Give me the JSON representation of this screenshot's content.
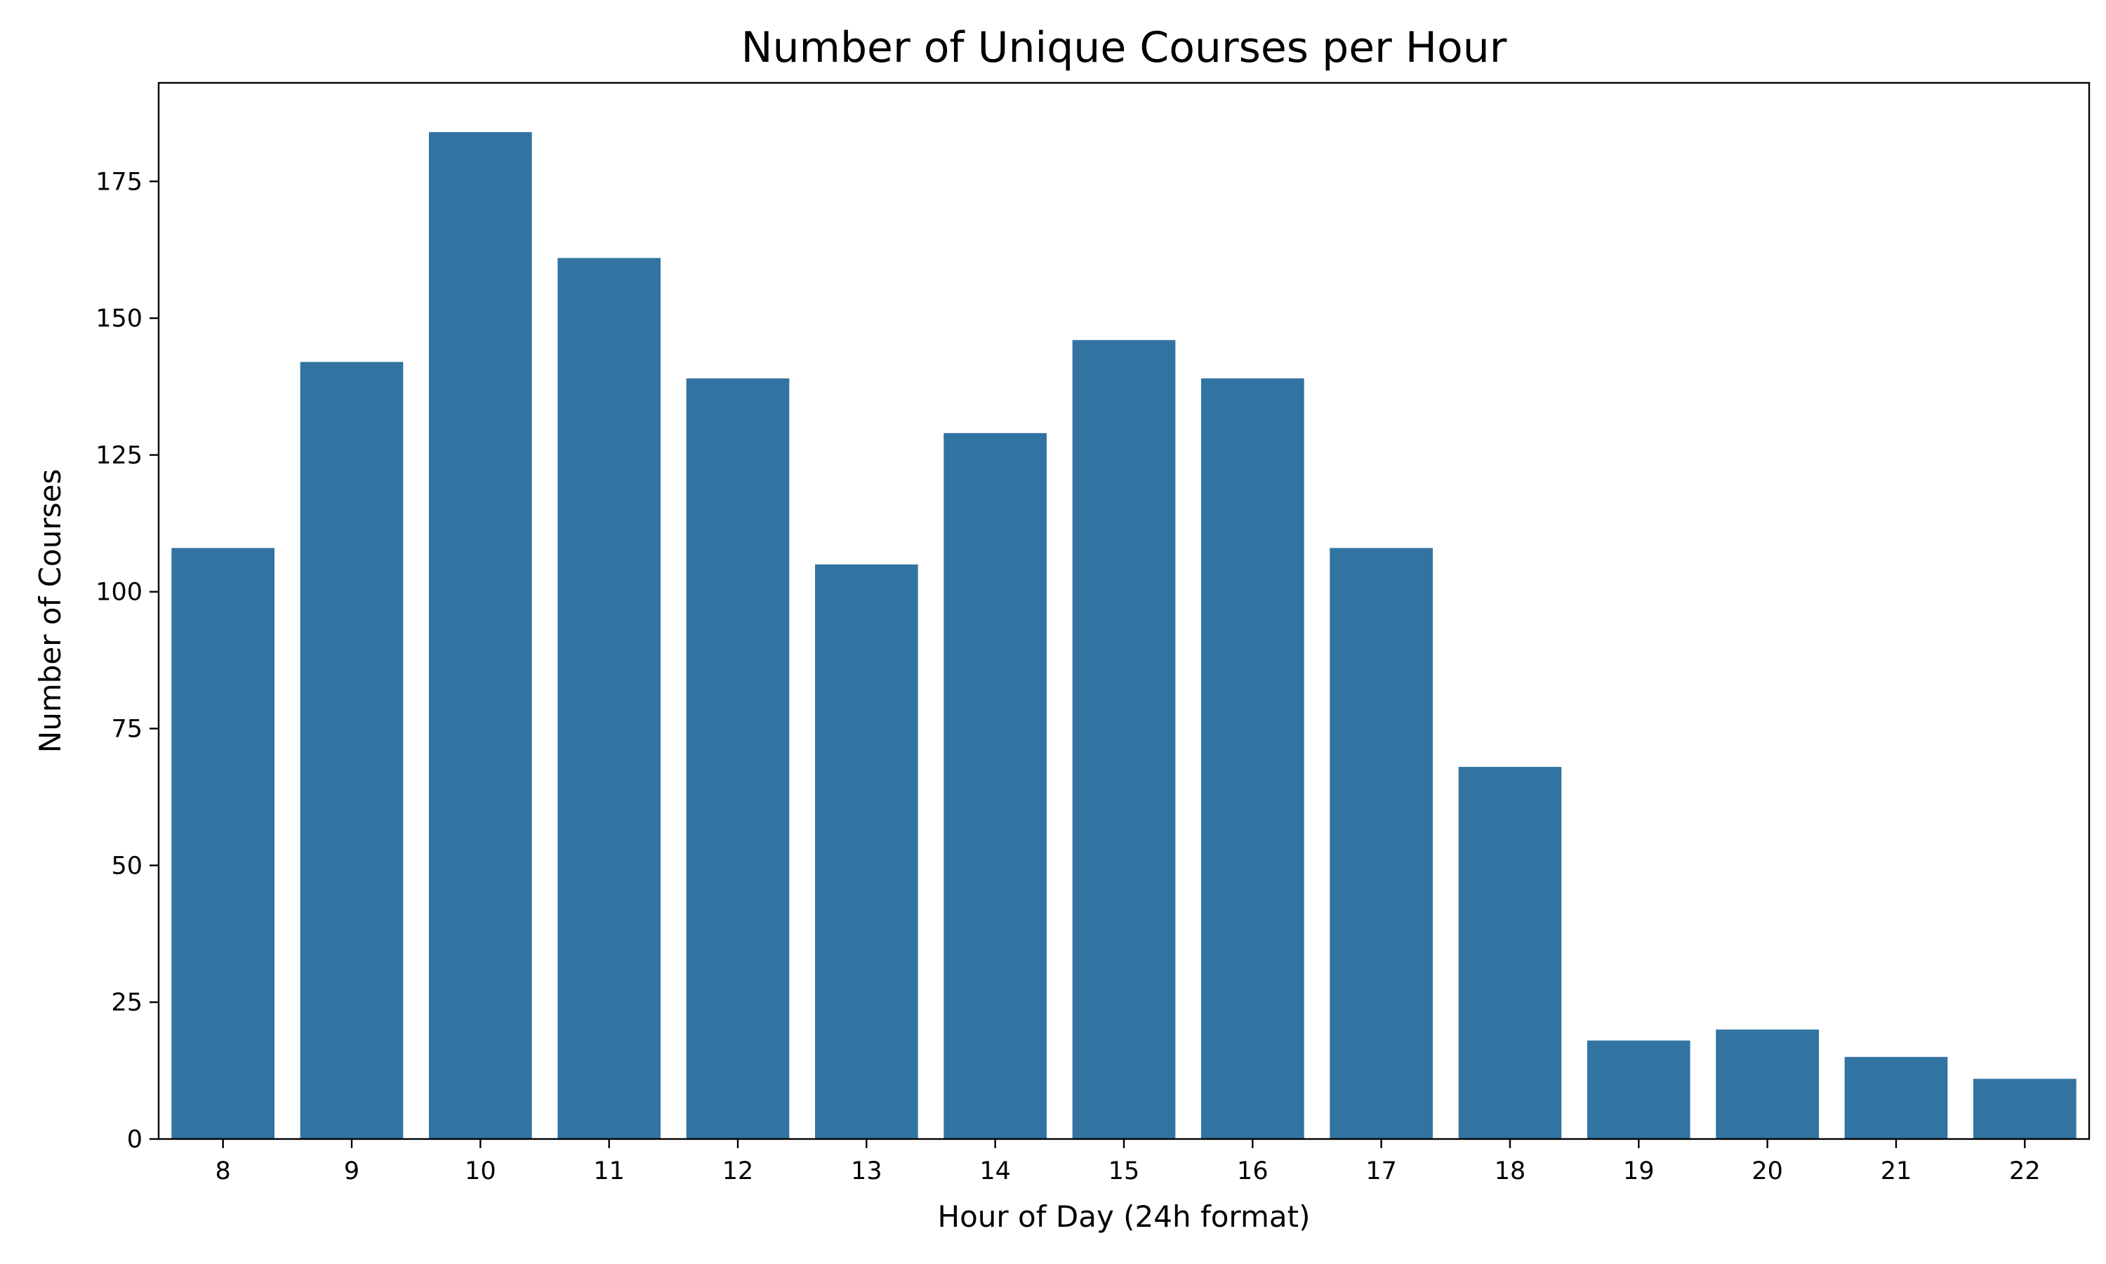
{
  "chart_data": {
    "type": "bar",
    "title": "Number of Unique Courses per Hour",
    "xlabel": "Hour of Day (24h format)",
    "ylabel": "Number of Courses",
    "categories": [
      "8",
      "9",
      "10",
      "11",
      "12",
      "13",
      "14",
      "15",
      "16",
      "17",
      "18",
      "19",
      "20",
      "21",
      "22"
    ],
    "values": [
      108,
      142,
      184,
      161,
      139,
      105,
      129,
      146,
      139,
      108,
      68,
      18,
      20,
      15,
      11
    ],
    "yticks": [
      0,
      25,
      50,
      75,
      100,
      125,
      150,
      175
    ],
    "ylim": [
      0,
      193
    ],
    "grid": false,
    "colors": {
      "bar": "#3274a1"
    }
  }
}
